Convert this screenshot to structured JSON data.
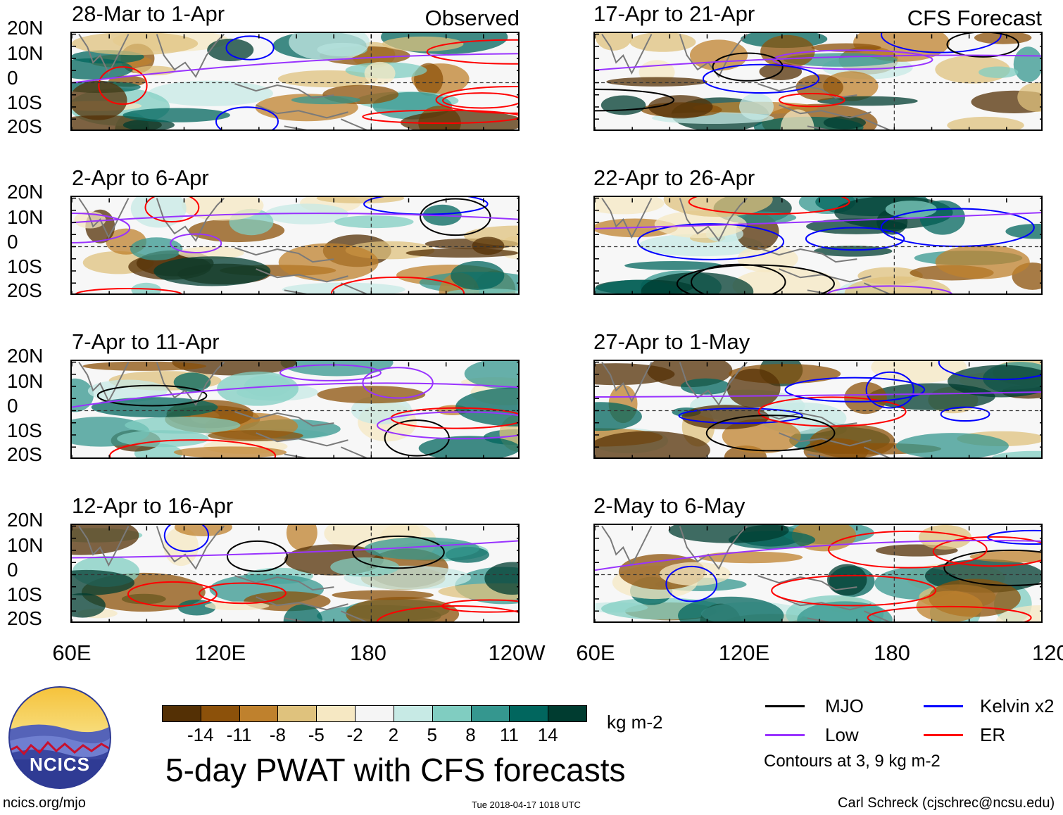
{
  "observed_label": "Observed",
  "forecast_label": "CFS Forecast",
  "lat_labels": [
    "20N",
    "10N",
    "0",
    "10S",
    "20S"
  ],
  "lon_labels": [
    "60E",
    "120E",
    "180",
    "120W"
  ],
  "panels_left": [
    {
      "title": "28-Mar to 1-Apr"
    },
    {
      "title": "2-Apr to 6-Apr"
    },
    {
      "title": "7-Apr to 11-Apr"
    },
    {
      "title": "12-Apr to 16-Apr"
    }
  ],
  "panels_right": [
    {
      "title": "17-Apr to 21-Apr"
    },
    {
      "title": "22-Apr to 26-Apr"
    },
    {
      "title": "27-Apr to 1-May"
    },
    {
      "title": "2-May to 6-May"
    }
  ],
  "colorbar": {
    "colors": [
      "#543005",
      "#8c510a",
      "#bf812d",
      "#dfc27d",
      "#f6e8c3",
      "#f5f5f5",
      "#c7eae5",
      "#80cdc1",
      "#35978f",
      "#01665e",
      "#003c30"
    ],
    "ticks": [
      "-14",
      "-11",
      "-8",
      "-5",
      "-2",
      "2",
      "5",
      "8",
      "11",
      "14"
    ],
    "units": "kg m-2"
  },
  "legend": {
    "items": [
      {
        "label": "MJO",
        "color": "#000000"
      },
      {
        "label": "Kelvin x2",
        "color": "#0000ff"
      },
      {
        "label": "Low",
        "color": "#9933ff"
      },
      {
        "label": "ER",
        "color": "#ff0000"
      }
    ],
    "contours_note": "Contours at 3, 9 kg m-2"
  },
  "logo_text": "NCICS",
  "main_title": "5-day PWAT with CFS forecasts",
  "footer": {
    "url": "ncics.org/mjo",
    "timestamp": "Tue 2018-04-17 1018 UTC",
    "credit": "Carl Schreck (cjschrec@ncsu.edu)"
  }
}
